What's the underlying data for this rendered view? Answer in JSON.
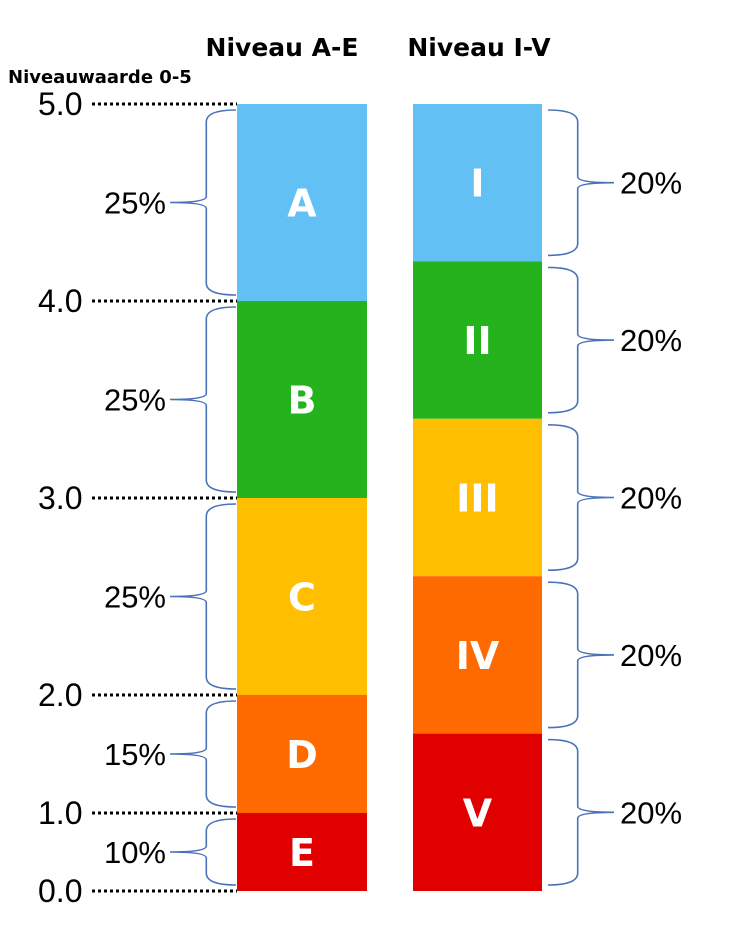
{
  "headers": {
    "left_title": "Niveau A-E",
    "right_title": "Niveau I-V",
    "scale_title": "Niveauwaarde 0-5"
  },
  "scale": {
    "ticks": [
      "0.0",
      "1.0",
      "2.0",
      "3.0",
      "4.0",
      "5.0"
    ]
  },
  "left_bands": [
    {
      "label": "A",
      "from": 4,
      "to": 5,
      "percent": "25%",
      "color": "#63c0f5"
    },
    {
      "label": "B",
      "from": 3,
      "to": 4,
      "percent": "25%",
      "color": "#24b31c"
    },
    {
      "label": "C",
      "from": 2,
      "to": 3,
      "percent": "25%",
      "color": "#ffbf00"
    },
    {
      "label": "D",
      "from": 1,
      "to": 2,
      "percent": "15%",
      "color": "#ff6a00"
    },
    {
      "label": "E",
      "from": 0,
      "to": 1,
      "percent": "10%",
      "color": "#e00000"
    }
  ],
  "right_bands": [
    {
      "label": "I",
      "percent": "20%",
      "color": "#63c0f5"
    },
    {
      "label": "II",
      "percent": "20%",
      "color": "#24b31c"
    },
    {
      "label": "III",
      "percent": "20%",
      "color": "#ffbf00"
    },
    {
      "label": "IV",
      "percent": "20%",
      "color": "#ff6a00"
    },
    {
      "label": "V",
      "percent": "20%",
      "color": "#e00000"
    }
  ]
}
